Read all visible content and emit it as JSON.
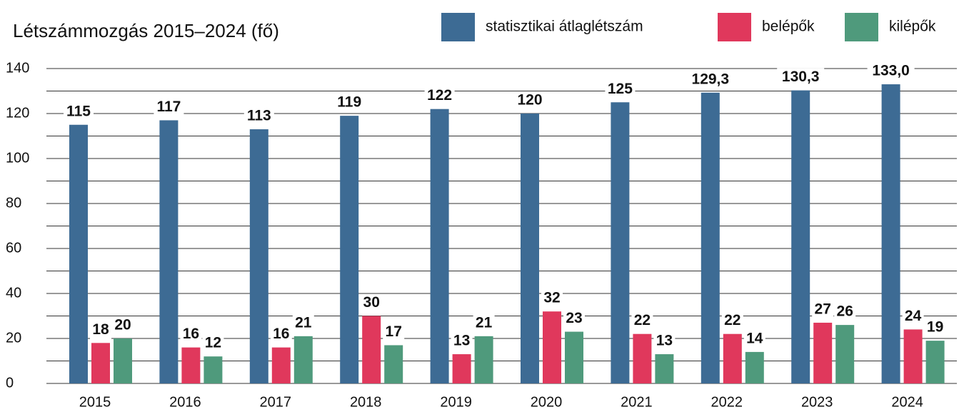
{
  "chart_data": {
    "type": "bar",
    "title": "Létszámmozgás 2015–2024 (fő)",
    "categories": [
      "2015",
      "2016",
      "2017",
      "2018",
      "2019",
      "2020",
      "2021",
      "2022",
      "2023",
      "2024"
    ],
    "series": [
      {
        "name": "statisztikai átlaglétszám",
        "color": "#3d6b94",
        "values": [
          115,
          117,
          113,
          119,
          122,
          120,
          125,
          129.3,
          130.3,
          133.0
        ],
        "value_labels": [
          "115",
          "117",
          "113",
          "119",
          "122",
          "120",
          "125",
          "129,3",
          "130,3",
          "133,0"
        ]
      },
      {
        "name": "belépők",
        "color": "#e0385c",
        "values": [
          18,
          16,
          16,
          30,
          13,
          32,
          22,
          22,
          27,
          24
        ]
      },
      {
        "name": "kilépők",
        "color": "#4f9a7c",
        "values": [
          20,
          12,
          21,
          17,
          21,
          23,
          13,
          14,
          26,
          19
        ]
      }
    ],
    "ylim": [
      0,
      140
    ],
    "yticks": [
      0,
      20,
      40,
      60,
      80,
      100,
      120,
      140
    ],
    "minor_yticks": [
      10,
      30,
      50,
      70,
      90,
      110,
      130
    ],
    "grid": true,
    "legend": "top"
  }
}
